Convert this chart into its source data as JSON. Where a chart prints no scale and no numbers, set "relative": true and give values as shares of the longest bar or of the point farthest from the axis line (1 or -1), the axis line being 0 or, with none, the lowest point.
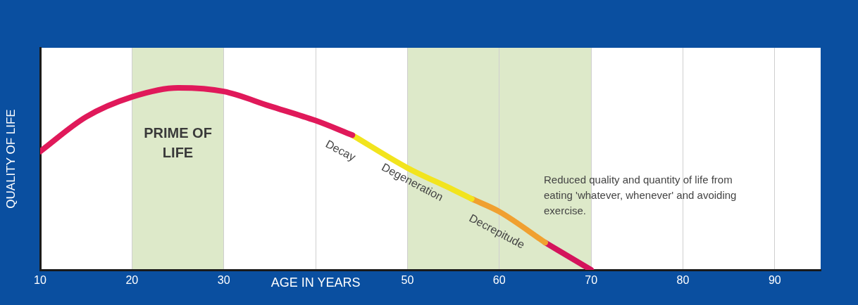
{
  "chart_data": {
    "type": "line",
    "relative": true,
    "xlabel": "AGE IN YEARS",
    "ylabel": "QUALITY OF LIFE",
    "series": [
      {
        "color": "#e0195a",
        "x": [
          10,
          15,
          20,
          25,
          30,
          35,
          40,
          44
        ],
        "values": [
          0.65,
          0.84,
          0.95,
          1,
          0.98,
          0.9,
          0.82,
          0.74
        ]
      },
      {
        "color": "#f2e41e",
        "x": [
          44,
          50,
          55,
          57
        ],
        "values": [
          0.74,
          0.56,
          0.44,
          0.39
        ]
      },
      {
        "color": "#f0a030",
        "x": [
          57,
          60,
          65
        ],
        "values": [
          0.39,
          0.32,
          0.15
        ]
      },
      {
        "color": "#d4145c",
        "x": [
          65,
          70
        ],
        "values": [
          0.15,
          0
        ]
      }
    ],
    "xlim": [
      10,
      95
    ],
    "xticks": [
      10,
      20,
      30,
      {
        "value": 40,
        "label": null
      },
      50,
      60,
      70,
      80,
      90
    ],
    "grid": "x",
    "marker": "none",
    "line_style": "solid",
    "bands": [
      {
        "axis": "x",
        "from": 20,
        "to": 30,
        "label": "PRIME OF LIFE",
        "color": "#dde9c9"
      },
      {
        "axis": "x",
        "from": 50,
        "to": 70,
        "color": "#dde9c9"
      }
    ],
    "annotations": [
      "Decay",
      "Degeneration",
      "Decrepitude",
      "Reduced quality and quantity of life from eating 'whatever, whenever' and avoiding exercise."
    ]
  }
}
